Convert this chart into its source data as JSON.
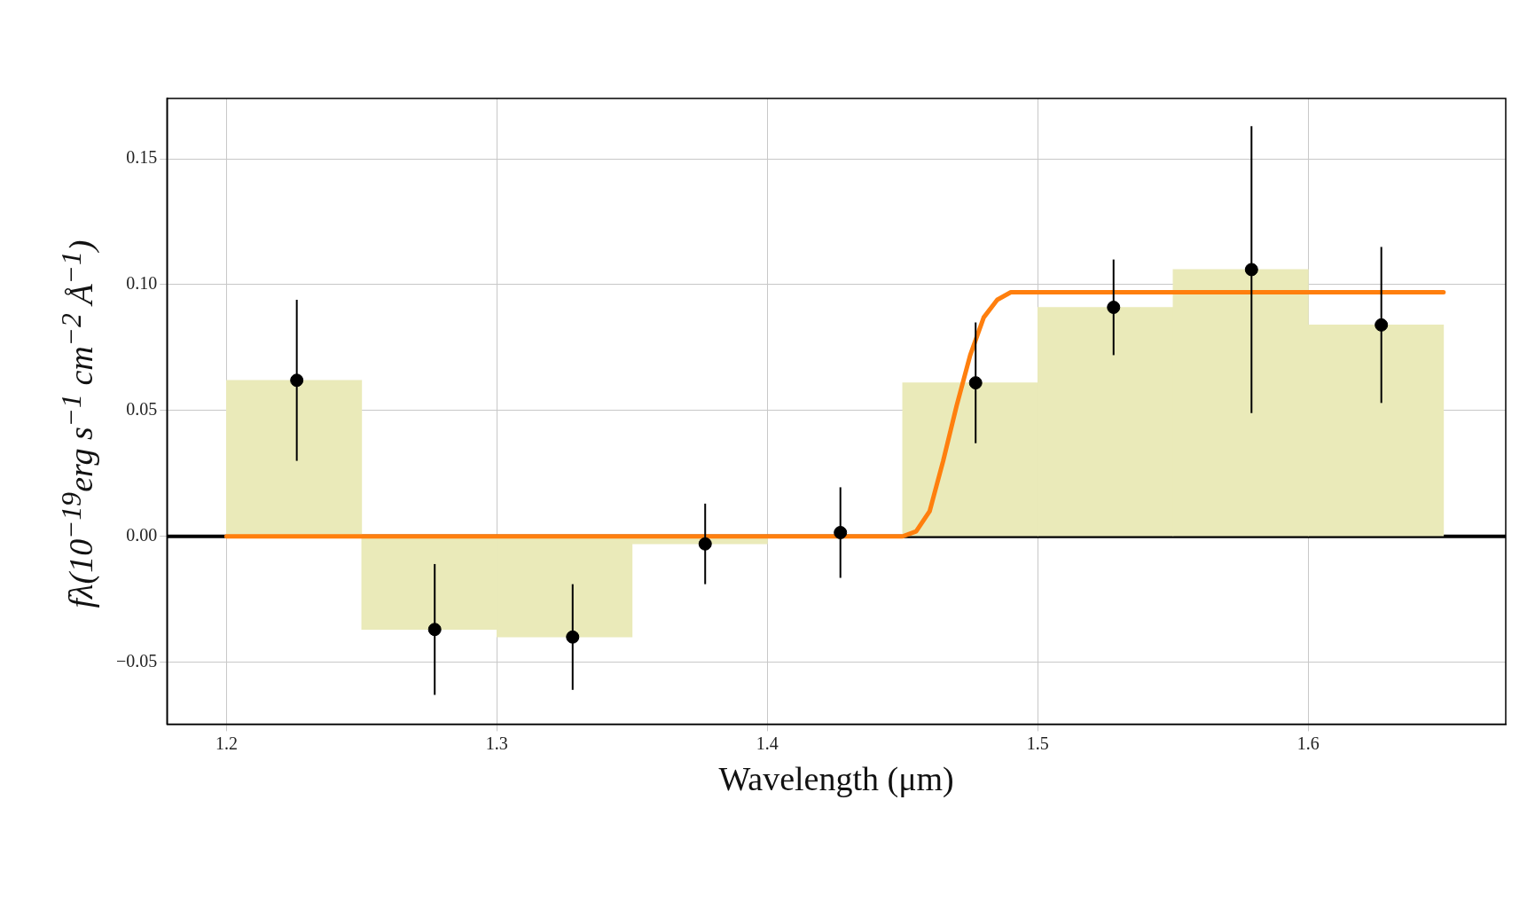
{
  "chart_data": {
    "type": "histogram",
    "xlabel": "Wavelength (μm)",
    "ylabel": "fλ(10$^{−19}$erg s$^{−1}$ cm$^{−2}$ Å$^{−1}$)",
    "xlim": [
      1.178,
      1.673
    ],
    "ylim": [
      -0.0746,
      0.174
    ],
    "xticks": [
      1.2,
      1.3,
      1.4,
      1.5,
      1.6
    ],
    "yticks": [
      {
        "value": -0.05,
        "label": "−0.05"
      },
      {
        "value": 0,
        "label": "0.00"
      },
      0.05,
      {
        "value": 0.1,
        "label": "0.10"
      },
      0.15
    ],
    "grid": true,
    "legend": false,
    "ref_lines": [
      {
        "axis": "y",
        "value": 0,
        "color": "#000000"
      }
    ],
    "series": [
      {
        "color": "#eaeab9",
        "bins": [
          1.2,
          1.25,
          1.3,
          1.35,
          1.4,
          1.45,
          1.5,
          1.55,
          1.6,
          1.65
        ],
        "values": [
          0.062,
          -0.037,
          -0.04,
          -0.003,
          null,
          0.061,
          0.091,
          0.106,
          0.084
        ]
      },
      {
        "type": "scatter",
        "color": "#000000",
        "marker": "circle",
        "x": [
          1.226,
          1.277,
          1.328,
          1.377,
          1.427,
          1.477,
          1.528,
          1.579,
          1.627
        ],
        "values": [
          0.062,
          -0.037,
          -0.04,
          -0.003,
          0.0015,
          0.061,
          0.091,
          0.106,
          0.084
        ],
        "errors": [
          0.032,
          0.026,
          0.021,
          0.016,
          0.018,
          0.024,
          0.019,
          0.057,
          0.031
        ]
      },
      {
        "type": "line",
        "color": "#ff7f0e",
        "x": [
          1.2,
          1.45,
          1.455,
          1.46,
          1.465,
          1.47,
          1.475,
          1.48,
          1.485,
          1.49,
          1.65
        ],
        "values": [
          0,
          0,
          0.002,
          0.01,
          0.03,
          0.052,
          0.072,
          0.087,
          0.094,
          0.097,
          0.097
        ]
      }
    ]
  }
}
